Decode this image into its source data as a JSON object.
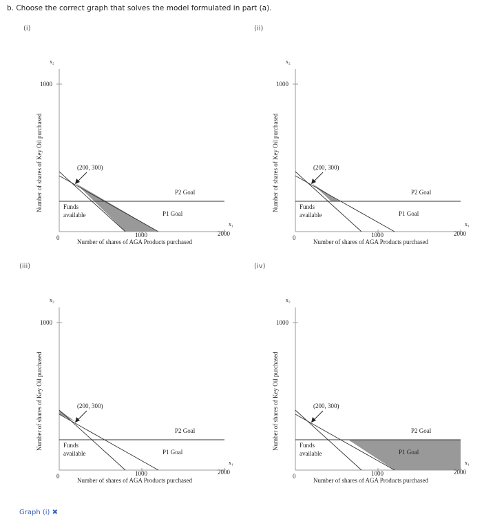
{
  "question": "b. Choose the correct graph that solves the model formulated in part (a).",
  "options": [
    {
      "label": "(i)",
      "shaded": "triangle-upper"
    },
    {
      "label": "(ii)",
      "shaded": "triangle-small"
    },
    {
      "label": "(iii)",
      "shaded": "wedge-left"
    },
    {
      "label": "(iv)",
      "shaded": "region-right"
    }
  ],
  "graph": {
    "y_axis_var": "x₂",
    "x_axis_var": "x₁",
    "y_tick": "1000",
    "x_ticks": [
      "1000",
      "2000"
    ],
    "origin": "0",
    "y_axis_label": "Number of shares of Key Oil purchased",
    "x_axis_label": "Number of shares of AGA Products purchased",
    "point_label": "(200, 300)",
    "funds_label_1": "Funds",
    "funds_label_2": "available",
    "p1_label": "P1 Goal",
    "p2_label": "P2 Goal"
  },
  "footer": {
    "text": "Graph (i) ✖"
  }
}
